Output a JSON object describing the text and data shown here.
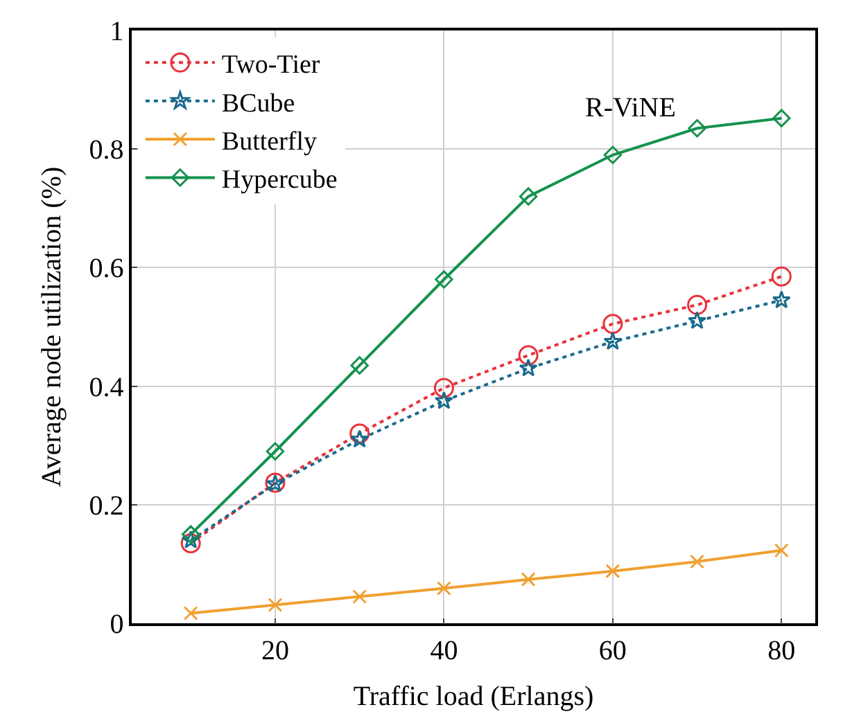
{
  "chart_data": {
    "type": "line",
    "xlabel": "Traffic load (Erlangs)",
    "ylabel": "Average node utilization (%)",
    "x": [
      10,
      20,
      30,
      40,
      50,
      60,
      70,
      80
    ],
    "series": [
      {
        "name": "Two-Tier",
        "color": "#e8323c",
        "line_style": "dotted",
        "marker": "circle",
        "values": [
          0.135,
          0.237,
          0.32,
          0.397,
          0.452,
          0.505,
          0.537,
          0.585
        ]
      },
      {
        "name": "BCube",
        "color": "#1a6a8c",
        "line_style": "dotted",
        "marker": "star",
        "values": [
          0.14,
          0.235,
          0.31,
          0.375,
          0.43,
          0.475,
          0.51,
          0.545
        ]
      },
      {
        "name": "Butterfly",
        "color": "#f0a030",
        "line_style": "solid",
        "marker": "cross",
        "values": [
          0.017,
          0.031,
          0.045,
          0.059,
          0.074,
          0.088,
          0.104,
          0.123
        ]
      },
      {
        "name": "Hypercube",
        "color": "#15924e",
        "line_style": "solid",
        "marker": "diamond",
        "values": [
          0.15,
          0.29,
          0.435,
          0.58,
          0.72,
          0.79,
          0.835,
          0.852
        ]
      }
    ],
    "annotations": [
      "R-ViNE"
    ],
    "xlim": [
      3,
      84
    ],
    "xticks": [
      20,
      40,
      60,
      80
    ],
    "ylim": [
      0,
      1
    ],
    "yticks": [
      0,
      0.2,
      0.4,
      0.6,
      0.8,
      1
    ],
    "grid": true,
    "legend": "top left"
  }
}
